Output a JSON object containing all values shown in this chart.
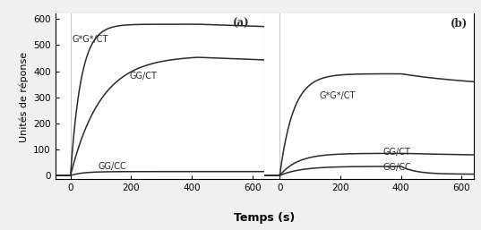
{
  "xlabel": "Temps (s)",
  "ylabel": "Unités de réponse",
  "xlim": [
    -50,
    640
  ],
  "ylim": [
    -15,
    620
  ],
  "yticks": [
    0,
    100,
    200,
    300,
    400,
    500,
    600
  ],
  "xticks": [
    0,
    200,
    400,
    600
  ],
  "panel_a_label": "(a)",
  "panel_b_label": "(b)",
  "line_color": "#2a2a2a",
  "background_color": "#f0f0f0",
  "plot_bg": "#f0f0f0",
  "panel_a": {
    "GG_CC_label": "GG/CC",
    "GG_CT_label": "GG/CT",
    "GsGs_CT_label": "G*G*/CT",
    "gsgs_tau": 35,
    "gsgs_ymax": 580,
    "gsgs_peak_t": 420,
    "gsgs_dissoc_slope": -0.04,
    "ggct_tau": 100,
    "ggct_ymax": 460,
    "ggct_peak_t": 420,
    "ggct_dissoc_slope": -0.045,
    "ggcc_ymax": 15,
    "ggcc_tau": 40
  },
  "panel_b": {
    "GG_CC_label": "GG/CC",
    "GG_CT_label": "GG/CT",
    "GsGs_CT_label": "G*G*/CT",
    "dissoc_t": 400,
    "gsgs_assoc_tau": 45,
    "gsgs_assoc_ymax": 390,
    "gsgs_dissoc_yinf": 335,
    "gsgs_dissoc_tau": 300,
    "ggct_assoc_tau": 60,
    "ggct_assoc_ymax": 85,
    "ggct_peak_before_drop": 85,
    "ggct_drop_yinf": 70,
    "ggct_dissoc_tau": 500,
    "ggcc_assoc_tau": 70,
    "ggcc_assoc_ymax": 35,
    "ggcc_dissoc_yinf": 5,
    "ggcc_dissoc_tau": 50
  }
}
